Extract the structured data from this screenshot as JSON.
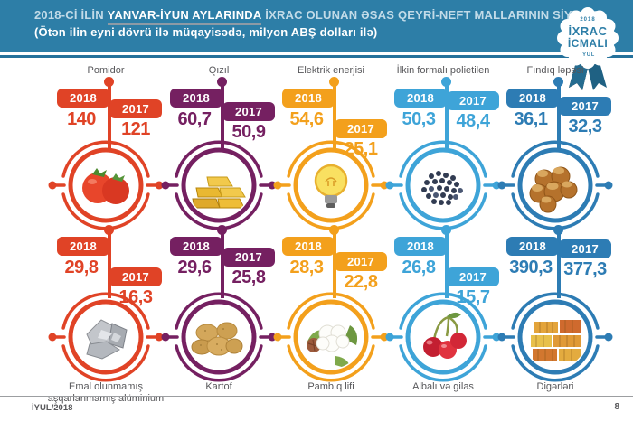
{
  "header": {
    "title_prefix": "2018-Cİ İLİN",
    "title_highlight": "YANVAR-İYUN AYLARINDA",
    "title_suffix": "İXRAC OLUNAN ƏSAS QEYRİ-NEFT MALLARININ SİYAHISI",
    "subtitle": "(Ötən ilin eyni dövrü ilə müqayisədə, milyon ABŞ dolları ilə)",
    "bg_color": "#2d7ea7"
  },
  "badge": {
    "year": "2018",
    "line1": "İXRAC",
    "line2": "İCMALI",
    "month": "İYUL"
  },
  "years": {
    "current": "2018",
    "previous": "2017"
  },
  "products": [
    {
      "label": "Pomidor",
      "v2018": "140",
      "v2017": "121",
      "color": "#e04326",
      "icon": "tomato"
    },
    {
      "label": "Qızıl",
      "v2018": "60,7",
      "v2017": "50,9",
      "color": "#752061",
      "icon": "gold-bars"
    },
    {
      "label": "Elektrik enerjisi",
      "v2018": "54,6",
      "v2017": "25,1",
      "color": "#f3a01c",
      "icon": "light-bulb"
    },
    {
      "label": "İlkin formalı polietilen",
      "v2018": "50,3",
      "v2017": "48,4",
      "color": "#3ea4d8",
      "icon": "polyethylene-granules"
    },
    {
      "label": "Fındıq ləpəsi",
      "v2018": "36,1",
      "v2017": "32,3",
      "color": "#2d7cb4",
      "icon": "hazelnuts"
    },
    {
      "label": "Emal olunmamış aşqarlanmamış alüminium",
      "v2018": "29,8",
      "v2017": "16,3",
      "color": "#e04326",
      "icon": "aluminium"
    },
    {
      "label": "Kartof",
      "v2018": "29,6",
      "v2017": "25,8",
      "color": "#752061",
      "icon": "potatoes"
    },
    {
      "label": "Pambıq lifi",
      "v2018": "28,3",
      "v2017": "22,8",
      "color": "#f3a01c",
      "icon": "cotton"
    },
    {
      "label": "Albalı və gilas",
      "v2018": "26,8",
      "v2017": "15,7",
      "color": "#3ea4d8",
      "icon": "cherries"
    },
    {
      "label": "Digərləri",
      "v2018": "390,3",
      "v2017": "377,3",
      "color": "#2d7cb4",
      "icon": "containers"
    }
  ],
  "footer": {
    "left": "İYUL/2018",
    "page": "8"
  },
  "chart_data": {
    "type": "bar",
    "title": "2018-Cİ İLİN YANVAR-İYUN AYLARINDA İXRAC OLUNAN ƏSAS QEYRİ-NEFT MALLARININ SİYAHISI",
    "subtitle": "(Ötən ilin eyni dövrü ilə müqayisədə, milyon ABŞ dolları ilə)",
    "unit": "milyon ABŞ dolları",
    "categories": [
      "Pomidor",
      "Qızıl",
      "Elektrik enerjisi",
      "İlkin formalı polietilen",
      "Fındıq ləpəsi",
      "Emal olunmamış aşqarlanmamış alüminium",
      "Kartof",
      "Pambıq lifi",
      "Albalı və gilas",
      "Digərləri"
    ],
    "series": [
      {
        "name": "2018",
        "values": [
          140,
          60.7,
          54.6,
          50.3,
          36.1,
          29.8,
          29.6,
          28.3,
          26.8,
          390.3
        ]
      },
      {
        "name": "2017",
        "values": [
          121,
          50.9,
          25.1,
          48.4,
          32.3,
          16.3,
          25.8,
          22.8,
          15.7,
          377.3
        ]
      }
    ],
    "palette": [
      "#e04326",
      "#752061",
      "#f3a01c",
      "#3ea4d8",
      "#2d7cb4"
    ],
    "legend_position": "per-item flags",
    "grid": false
  }
}
